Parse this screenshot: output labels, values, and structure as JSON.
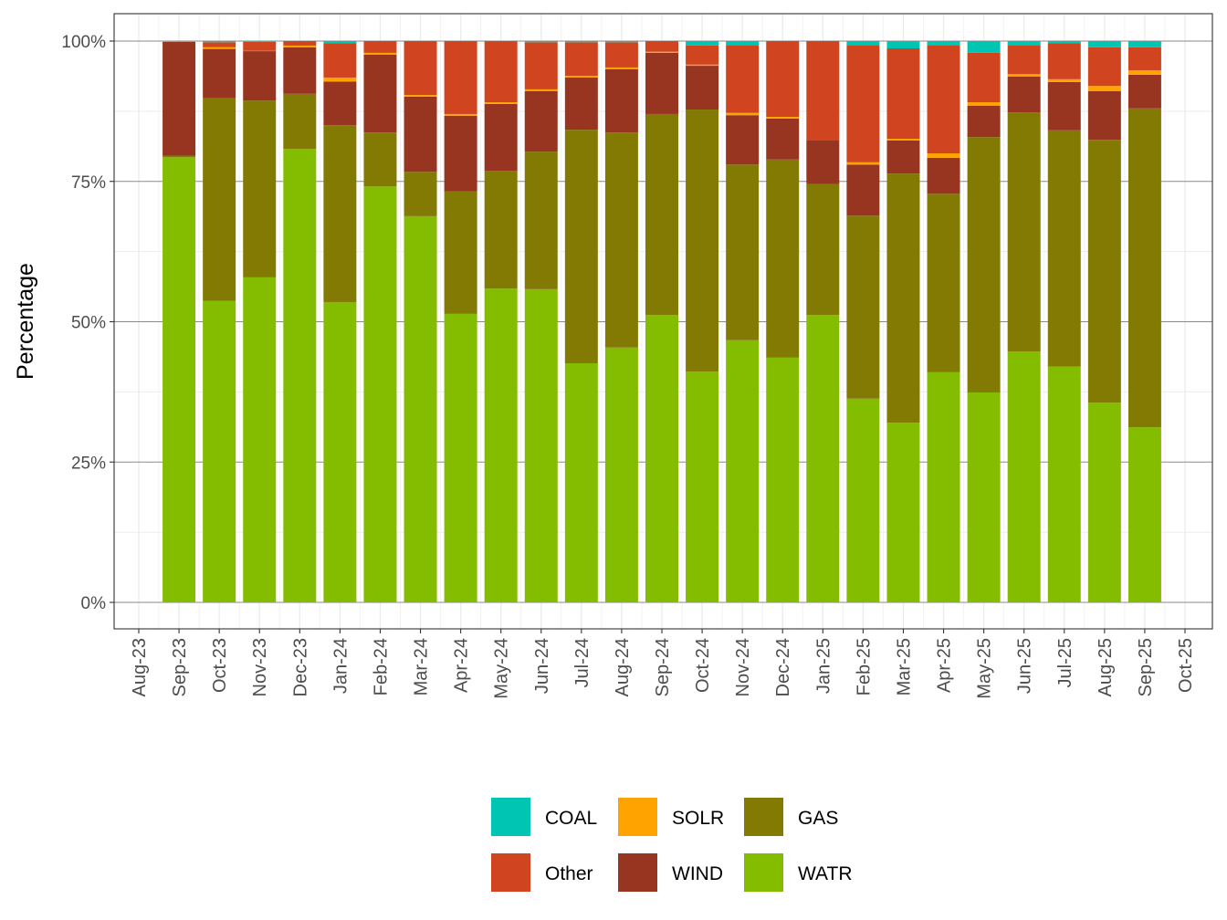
{
  "chart_data": {
    "type": "bar",
    "stacked": true,
    "ylabel": "Percentage",
    "xlabel": "",
    "ylim": [
      0,
      100
    ],
    "yticks": [
      "0%",
      "25%",
      "50%",
      "75%",
      "100%"
    ],
    "ytick_values": [
      0,
      25,
      50,
      75,
      100
    ],
    "xticks": [
      "Aug-23",
      "Sep-23",
      "Oct-23",
      "Nov-23",
      "Dec-23",
      "Jan-24",
      "Feb-24",
      "Mar-24",
      "Apr-24",
      "May-24",
      "Jun-24",
      "Jul-24",
      "Aug-24",
      "Sep-24",
      "Oct-24",
      "Nov-24",
      "Dec-24",
      "Jan-25",
      "Feb-25",
      "Mar-25",
      "Apr-25",
      "May-25",
      "Jun-25",
      "Jul-25",
      "Aug-25",
      "Sep-25",
      "Oct-25"
    ],
    "categories": [
      "Sep-23",
      "Oct-23",
      "Nov-23",
      "Dec-23",
      "Jan-24",
      "Feb-24",
      "Mar-24",
      "Apr-24",
      "May-24",
      "Jun-24",
      "Jul-24",
      "Aug-24",
      "Sep-24",
      "Oct-24",
      "Nov-24",
      "Dec-24",
      "Jan-25",
      "Feb-25",
      "Mar-25",
      "Apr-25",
      "May-25",
      "Jun-25",
      "Jul-25",
      "Aug-25",
      "Sep-25"
    ],
    "grid": true,
    "legend_position": "bottom",
    "series": [
      {
        "name": "WATR",
        "color": "#84BC00",
        "values": [
          79.3,
          53.7,
          57.9,
          80.8,
          53.5,
          74.1,
          68.8,
          51.4,
          55.9,
          55.8,
          42.6,
          45.4,
          51.2,
          41.1,
          46.7,
          43.6,
          51.2,
          36.3,
          32.0,
          41.0,
          37.4,
          44.7,
          42.0,
          35.6,
          31.2
        ]
      },
      {
        "name": "GAS",
        "color": "#837A04",
        "values": [
          0.3,
          36.1,
          31.5,
          9.8,
          31.5,
          9.6,
          7.9,
          21.8,
          21.0,
          24.5,
          41.6,
          38.3,
          35.8,
          46.7,
          31.3,
          35.3,
          23.3,
          32.6,
          44.4,
          31.8,
          45.5,
          42.6,
          42.1,
          46.8,
          56.8
        ]
      },
      {
        "name": "WIND",
        "color": "#973521",
        "values": [
          20.3,
          8.8,
          8.8,
          8.3,
          7.8,
          13.9,
          13.4,
          13.5,
          11.9,
          10.8,
          9.3,
          11.3,
          10.9,
          7.8,
          8.8,
          7.3,
          7.9,
          9.1,
          5.9,
          6.4,
          5.6,
          6.4,
          8.6,
          8.7,
          6.0
        ]
      },
      {
        "name": "SOLR",
        "color": "#FFA300",
        "values": [
          0.1,
          0.3,
          0.05,
          0.3,
          0.7,
          0.3,
          0.3,
          0.3,
          0.3,
          0.3,
          0.3,
          0.3,
          0.2,
          0.2,
          0.4,
          0.3,
          0,
          0.4,
          0.3,
          0.8,
          0.6,
          0.4,
          0.5,
          0.9,
          0.8
        ]
      },
      {
        "name": "Other",
        "color": "#D04520",
        "values": [
          0,
          0.9,
          1.6,
          0.8,
          6.1,
          2.1,
          9.6,
          13.0,
          10.9,
          8.4,
          6.0,
          4.5,
          1.9,
          3.4,
          12.1,
          13.5,
          17.6,
          20.9,
          16.1,
          19.3,
          8.8,
          5.2,
          6.4,
          6.9,
          4.1
        ]
      },
      {
        "name": "COAL",
        "color": "#00C5B2",
        "values": [
          0,
          0.2,
          0.2,
          0,
          0.4,
          0,
          0,
          0,
          0,
          0.2,
          0.2,
          0.2,
          0,
          0.8,
          0.7,
          0,
          0,
          0.7,
          1.3,
          0.7,
          2.1,
          0.7,
          0.4,
          1.1,
          1.1
        ]
      }
    ],
    "legend": [
      {
        "name": "COAL",
        "color": "#00C5B2"
      },
      {
        "name": "SOLR",
        "color": "#FFA300"
      },
      {
        "name": "GAS",
        "color": "#837A04"
      },
      {
        "name": "Other",
        "color": "#D04520"
      },
      {
        "name": "WIND",
        "color": "#973521"
      },
      {
        "name": "WATR",
        "color": "#84BC00"
      }
    ]
  }
}
